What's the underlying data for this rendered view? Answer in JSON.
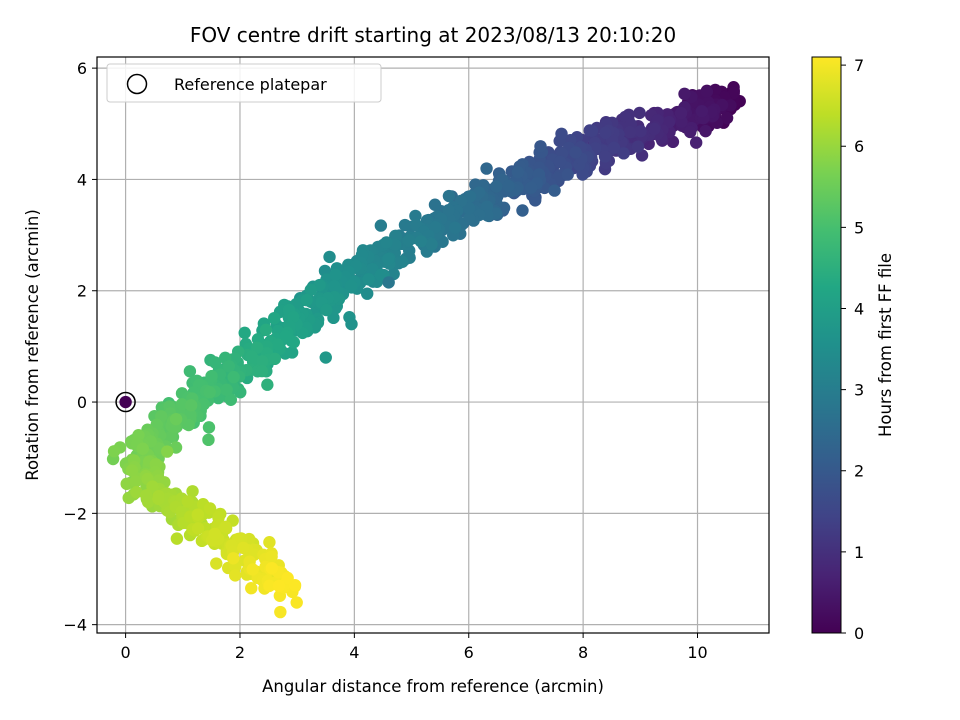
{
  "chart_data": {
    "type": "scatter",
    "title": "FOV centre drift starting at 2023/08/13 20:10:20",
    "xlabel": "Angular distance from reference (arcmin)",
    "ylabel": "Rotation from reference (arcmin)",
    "xlim": [
      -0.5,
      11.25
    ],
    "ylim": [
      -4.15,
      6.2
    ],
    "xticks": [
      0,
      2,
      4,
      6,
      8,
      10
    ],
    "yticks": [
      -4,
      -2,
      0,
      2,
      4,
      6
    ],
    "grid": true,
    "legend": {
      "placement": "top-left",
      "entries": [
        "Reference platepar"
      ]
    },
    "colorbar": {
      "label": "Hours from first FF file",
      "range": [
        0,
        7.1
      ],
      "ticks": [
        0,
        1,
        2,
        3,
        4,
        5,
        6,
        7
      ],
      "colormap": "viridis"
    },
    "reference_point": {
      "x": 0,
      "y": 0,
      "hours": 0
    },
    "path": [
      {
        "hours": 0.0,
        "x": 10.6,
        "y": 5.35
      },
      {
        "hours": 0.6,
        "x": 9.6,
        "y": 5.05
      },
      {
        "hours": 1.0,
        "x": 8.8,
        "y": 4.8
      },
      {
        "hours": 1.5,
        "x": 7.9,
        "y": 4.45
      },
      {
        "hours": 2.0,
        "x": 7.0,
        "y": 4.0
      },
      {
        "hours": 2.5,
        "x": 6.1,
        "y": 3.55
      },
      {
        "hours": 3.0,
        "x": 5.0,
        "y": 2.85
      },
      {
        "hours": 3.5,
        "x": 3.9,
        "y": 2.2
      },
      {
        "hours": 4.0,
        "x": 3.0,
        "y": 1.45
      },
      {
        "hours": 4.5,
        "x": 2.1,
        "y": 0.65
      },
      {
        "hours": 5.0,
        "x": 1.3,
        "y": 0.05
      },
      {
        "hours": 5.4,
        "x": 0.6,
        "y": -0.55
      },
      {
        "hours": 5.7,
        "x": 0.15,
        "y": -1.0
      },
      {
        "hours": 6.0,
        "x": 0.4,
        "y": -1.6
      },
      {
        "hours": 6.3,
        "x": 1.1,
        "y": -2.05
      },
      {
        "hours": 6.6,
        "x": 1.75,
        "y": -2.5
      },
      {
        "hours": 6.9,
        "x": 2.35,
        "y": -3.0
      },
      {
        "hours": 7.1,
        "x": 2.8,
        "y": -3.45
      }
    ],
    "outliers": [
      {
        "hours": 2.1,
        "x": 7.5,
        "y": 3.8
      },
      {
        "hours": 3.8,
        "x": 3.5,
        "y": 0.8
      },
      {
        "hours": 3.6,
        "x": 3.95,
        "y": 1.4
      },
      {
        "hours": 2.8,
        "x": 4.6,
        "y": 2.15
      }
    ],
    "n_points": 1100,
    "jitter": 0.18,
    "seed": 12345
  }
}
